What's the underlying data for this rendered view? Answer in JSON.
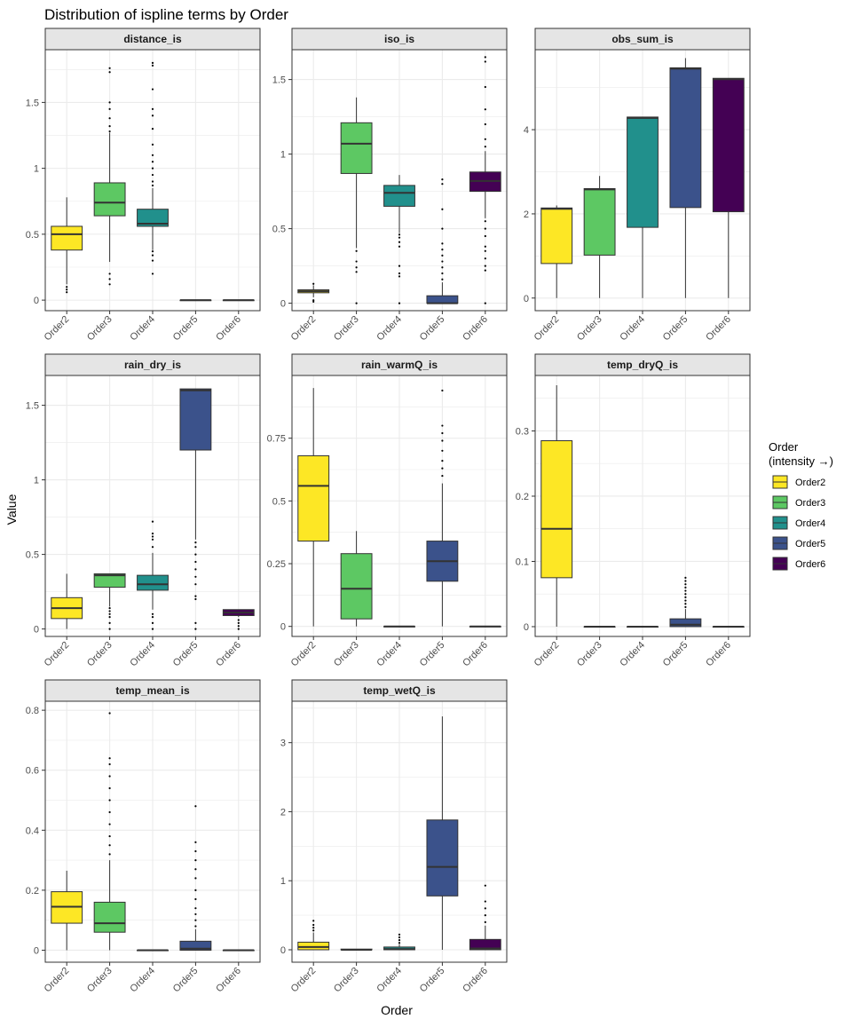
{
  "title": "Distribution of ispline terms by Order",
  "xlabel": "Order",
  "ylabel": "Value",
  "legend": {
    "title_line1": "Order",
    "title_line2": "(intensity →)",
    "entries": [
      "Order2",
      "Order3",
      "Order4",
      "Order5",
      "Order6"
    ]
  },
  "colors": {
    "Order2": "#FDE725",
    "Order3": "#5DC863",
    "Order4": "#21908C",
    "Order5": "#3B528B",
    "Order6": "#440154",
    "strip_bg": "#E5E5E5",
    "grid": "#EBEBEB"
  },
  "chart_data": [
    {
      "type": "box",
      "facet": "distance_is",
      "categories": [
        "Order2",
        "Order3",
        "Order4",
        "Order5",
        "Order6"
      ],
      "ylim": [
        -0.08,
        1.9
      ],
      "yticks": [
        0.0,
        0.5,
        1.0,
        1.5
      ],
      "boxes": [
        {
          "min": 0.12,
          "q1": 0.38,
          "median": 0.5,
          "q3": 0.56,
          "max": 0.78,
          "outliers": [
            0.1,
            0.08,
            0.06
          ]
        },
        {
          "min": 0.29,
          "q1": 0.64,
          "median": 0.74,
          "q3": 0.89,
          "max": 1.27,
          "outliers": [
            0.2,
            0.16,
            0.12,
            1.28,
            1.32,
            1.38,
            1.45,
            1.5,
            1.73,
            1.76
          ]
        },
        {
          "min": 0.38,
          "q1": 0.56,
          "median": 0.58,
          "q3": 0.69,
          "max": 0.85,
          "outliers": [
            0.2,
            0.3,
            0.34,
            0.37,
            0.87,
            0.9,
            0.95,
            1.0,
            1.05,
            1.1,
            1.18,
            1.3,
            1.4,
            1.45,
            1.6,
            1.78,
            1.8
          ]
        },
        {
          "min": 0.0,
          "q1": 0.0,
          "median": 0.0,
          "q3": 0.0,
          "max": 0.0,
          "outliers": []
        },
        {
          "min": 0.0,
          "q1": 0.0,
          "median": 0.0,
          "q3": 0.0,
          "max": 0.0,
          "outliers": []
        }
      ]
    },
    {
      "type": "box",
      "facet": "iso_is",
      "categories": [
        "Order2",
        "Order3",
        "Order4",
        "Order5",
        "Order6"
      ],
      "ylim": [
        -0.05,
        1.7
      ],
      "yticks": [
        0.0,
        0.5,
        1.0,
        1.5
      ],
      "boxes": [
        {
          "min": 0.04,
          "q1": 0.07,
          "median": 0.08,
          "q3": 0.09,
          "max": 0.12,
          "outliers": [
            0.01,
            0.02,
            0.13
          ]
        },
        {
          "min": 0.37,
          "q1": 0.87,
          "median": 1.07,
          "q3": 1.21,
          "max": 1.38,
          "outliers": [
            0.0,
            0.21,
            0.24,
            0.28,
            0.35
          ]
        },
        {
          "min": 0.47,
          "q1": 0.65,
          "median": 0.74,
          "q3": 0.79,
          "max": 0.86,
          "outliers": [
            0.0,
            0.18,
            0.2,
            0.25,
            0.38,
            0.41,
            0.44,
            0.46
          ]
        },
        {
          "min": 0.0,
          "q1": 0.0,
          "median": 0.0,
          "q3": 0.05,
          "max": 0.14,
          "outliers": [
            0.16,
            0.2,
            0.24,
            0.28,
            0.32,
            0.36,
            0.4,
            0.5,
            0.63,
            0.8,
            0.83
          ]
        },
        {
          "min": 0.57,
          "q1": 0.75,
          "median": 0.82,
          "q3": 0.88,
          "max": 1.02,
          "outliers": [
            0.0,
            0.22,
            0.25,
            0.3,
            0.35,
            0.38,
            0.45,
            0.5,
            0.55,
            1.05,
            1.1,
            1.2,
            1.3,
            1.45,
            1.62,
            1.65
          ]
        }
      ]
    },
    {
      "type": "box",
      "facet": "obs_sum_is",
      "categories": [
        "Order2",
        "Order3",
        "Order4",
        "Order5",
        "Order6"
      ],
      "ylim": [
        -0.3,
        5.9
      ],
      "yticks": [
        0,
        2,
        4
      ],
      "boxes": [
        {
          "min": 0.0,
          "q1": 0.82,
          "median": 2.12,
          "q3": 2.14,
          "max": 2.2,
          "outliers": []
        },
        {
          "min": 0.0,
          "q1": 1.02,
          "median": 2.58,
          "q3": 2.6,
          "max": 2.9,
          "outliers": []
        },
        {
          "min": 0.0,
          "q1": 1.68,
          "median": 4.28,
          "q3": 4.3,
          "max": 4.3,
          "outliers": []
        },
        {
          "min": 0.0,
          "q1": 2.15,
          "median": 5.45,
          "q3": 5.47,
          "max": 5.7,
          "outliers": []
        },
        {
          "min": 0.0,
          "q1": 2.05,
          "median": 5.2,
          "q3": 5.22,
          "max": 5.22,
          "outliers": []
        }
      ]
    },
    {
      "type": "box",
      "facet": "rain_dry_is",
      "categories": [
        "Order2",
        "Order3",
        "Order4",
        "Order5",
        "Order6"
      ],
      "ylim": [
        -0.05,
        1.7
      ],
      "yticks": [
        0.0,
        0.5,
        1.0,
        1.5
      ],
      "boxes": [
        {
          "min": 0.0,
          "q1": 0.07,
          "median": 0.14,
          "q3": 0.21,
          "max": 0.37,
          "outliers": []
        },
        {
          "min": 0.15,
          "q1": 0.28,
          "median": 0.36,
          "q3": 0.37,
          "max": 0.37,
          "outliers": [
            0.0,
            0.04,
            0.08,
            0.1,
            0.12,
            0.14
          ]
        },
        {
          "min": 0.13,
          "q1": 0.26,
          "median": 0.3,
          "q3": 0.36,
          "max": 0.51,
          "outliers": [
            0.0,
            0.04,
            0.08,
            0.1,
            0.55,
            0.6,
            0.62,
            0.64,
            0.72
          ]
        },
        {
          "min": 0.6,
          "q1": 1.2,
          "median": 1.6,
          "q3": 1.61,
          "max": 1.61,
          "outliers": [
            0.0,
            0.04,
            0.2,
            0.22,
            0.3,
            0.35,
            0.4,
            0.45,
            0.5,
            0.55,
            0.58
          ]
        },
        {
          "min": 0.08,
          "q1": 0.09,
          "median": 0.11,
          "q3": 0.13,
          "max": 0.13,
          "outliers": [
            0.0,
            0.02,
            0.04,
            0.06
          ]
        }
      ]
    },
    {
      "type": "box",
      "facet": "rain_warmQ_is",
      "categories": [
        "Order2",
        "Order3",
        "Order4",
        "Order5",
        "Order6"
      ],
      "ylim": [
        -0.04,
        1.0
      ],
      "yticks": [
        0.0,
        0.25,
        0.5,
        0.75
      ],
      "boxes": [
        {
          "min": 0.0,
          "q1": 0.34,
          "median": 0.56,
          "q3": 0.68,
          "max": 0.95,
          "outliers": []
        },
        {
          "min": 0.0,
          "q1": 0.03,
          "median": 0.15,
          "q3": 0.29,
          "max": 0.38,
          "outliers": []
        },
        {
          "min": 0.0,
          "q1": 0.0,
          "median": 0.0,
          "q3": 0.0,
          "max": 0.0,
          "outliers": []
        },
        {
          "min": 0.0,
          "q1": 0.18,
          "median": 0.26,
          "q3": 0.34,
          "max": 0.57,
          "outliers": [
            0.6,
            0.63,
            0.66,
            0.7,
            0.74,
            0.77,
            0.8,
            0.94
          ]
        },
        {
          "min": 0.0,
          "q1": 0.0,
          "median": 0.0,
          "q3": 0.0,
          "max": 0.0,
          "outliers": []
        }
      ]
    },
    {
      "type": "box",
      "facet": "temp_dryQ_is",
      "categories": [
        "Order2",
        "Order3",
        "Order4",
        "Order5",
        "Order6"
      ],
      "ylim": [
        -0.015,
        0.385
      ],
      "yticks": [
        0.0,
        0.1,
        0.2,
        0.3
      ],
      "boxes": [
        {
          "min": 0.0,
          "q1": 0.075,
          "median": 0.15,
          "q3": 0.285,
          "max": 0.37,
          "outliers": []
        },
        {
          "min": 0.0,
          "q1": 0.0,
          "median": 0.0,
          "q3": 0.0,
          "max": 0.0,
          "outliers": []
        },
        {
          "min": 0.0,
          "q1": 0.0,
          "median": 0.0,
          "q3": 0.0,
          "max": 0.0,
          "outliers": []
        },
        {
          "min": 0.0,
          "q1": 0.0,
          "median": 0.003,
          "q3": 0.012,
          "max": 0.027,
          "outliers": [
            0.03,
            0.035,
            0.04,
            0.045,
            0.05,
            0.055,
            0.06,
            0.065,
            0.07,
            0.075
          ]
        },
        {
          "min": 0.0,
          "q1": 0.0,
          "median": 0.0,
          "q3": 0.0,
          "max": 0.0,
          "outliers": []
        }
      ]
    },
    {
      "type": "box",
      "facet": "temp_mean_is",
      "categories": [
        "Order2",
        "Order3",
        "Order4",
        "Order5",
        "Order6"
      ],
      "ylim": [
        -0.04,
        0.83
      ],
      "yticks": [
        0.0,
        0.2,
        0.4,
        0.6,
        0.8
      ],
      "boxes": [
        {
          "min": 0.0,
          "q1": 0.09,
          "median": 0.145,
          "q3": 0.195,
          "max": 0.265,
          "outliers": []
        },
        {
          "min": 0.0,
          "q1": 0.06,
          "median": 0.09,
          "q3": 0.16,
          "max": 0.3,
          "outliers": [
            0.32,
            0.35,
            0.38,
            0.42,
            0.46,
            0.5,
            0.54,
            0.58,
            0.62,
            0.64,
            0.79
          ]
        },
        {
          "min": 0.0,
          "q1": 0.0,
          "median": 0.0,
          "q3": 0.0,
          "max": 0.0,
          "outliers": []
        },
        {
          "min": 0.0,
          "q1": 0.0,
          "median": 0.005,
          "q3": 0.03,
          "max": 0.07,
          "outliers": [
            0.08,
            0.1,
            0.12,
            0.14,
            0.17,
            0.2,
            0.24,
            0.27,
            0.3,
            0.33,
            0.36,
            0.48
          ]
        },
        {
          "min": 0.0,
          "q1": 0.0,
          "median": 0.0,
          "q3": 0.0,
          "max": 0.0,
          "outliers": []
        }
      ]
    },
    {
      "type": "box",
      "facet": "temp_wetQ_is",
      "categories": [
        "Order2",
        "Order3",
        "Order4",
        "Order5",
        "Order6"
      ],
      "ylim": [
        -0.18,
        3.6
      ],
      "yticks": [
        0,
        1,
        2,
        3
      ],
      "boxes": [
        {
          "min": 0.0,
          "q1": 0.0,
          "median": 0.04,
          "q3": 0.11,
          "max": 0.25,
          "outliers": [
            0.28,
            0.32,
            0.36,
            0.42
          ]
        },
        {
          "min": 0.0,
          "q1": 0.0,
          "median": 0.0,
          "q3": 0.01,
          "max": 0.01,
          "outliers": []
        },
        {
          "min": 0.0,
          "q1": 0.0,
          "median": 0.01,
          "q3": 0.04,
          "max": 0.08,
          "outliers": [
            0.1,
            0.14,
            0.18,
            0.22
          ]
        },
        {
          "min": 0.0,
          "q1": 0.78,
          "median": 1.2,
          "q3": 1.88,
          "max": 3.38,
          "outliers": []
        },
        {
          "min": 0.0,
          "q1": 0.0,
          "median": 0.02,
          "q3": 0.15,
          "max": 0.35,
          "outliers": [
            0.4,
            0.5,
            0.6,
            0.7,
            0.93
          ]
        }
      ]
    }
  ]
}
